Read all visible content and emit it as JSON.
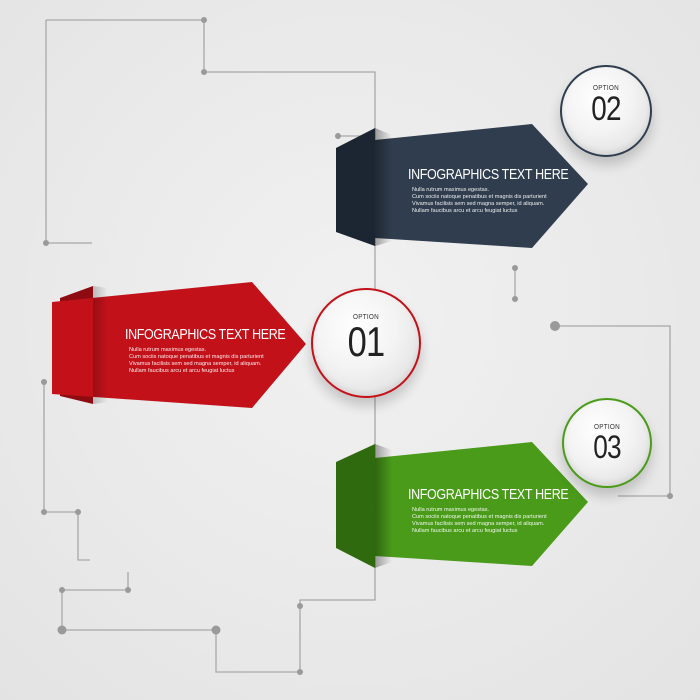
{
  "options": [
    {
      "option_label": "OPTION",
      "number": "01",
      "color": "#c3111a",
      "title": "INFOGRAPHICS TEXT HERE",
      "body": [
        "Nulla rutrum maximus egestas.",
        "Cum sociis natoque penatibus et magnis dis parturient",
        "Vivamus facilisis sem sed magna semper, id aliquam.",
        "Nullam faucibus arcu et arcu feugiat luctus"
      ]
    },
    {
      "option_label": "OPTION",
      "number": "02",
      "color": "#2f3d4e",
      "title": "INFOGRAPHICS TEXT HERE",
      "body": [
        "Nulla rutrum maximus egestas.",
        "Cum sociis natoque penatibus et magnis dis parturient",
        "Vivamus facilisis sem sed magna semper, id aliquam.",
        "Nullam faucibus arcu et arcu feugiat luctus"
      ]
    },
    {
      "option_label": "OPTION",
      "number": "03",
      "color": "#4a9b1a",
      "title": "INFOGRAPHICS TEXT HERE",
      "body": [
        "Nulla rutrum maximus egestas.",
        "Cum sociis natoque penatibus et magnis dis parturient",
        "Vivamus facilisis sem sed magna semper, id aliquam.",
        "Nullam faucibus arcu et arcu feugiat luctus"
      ]
    }
  ]
}
